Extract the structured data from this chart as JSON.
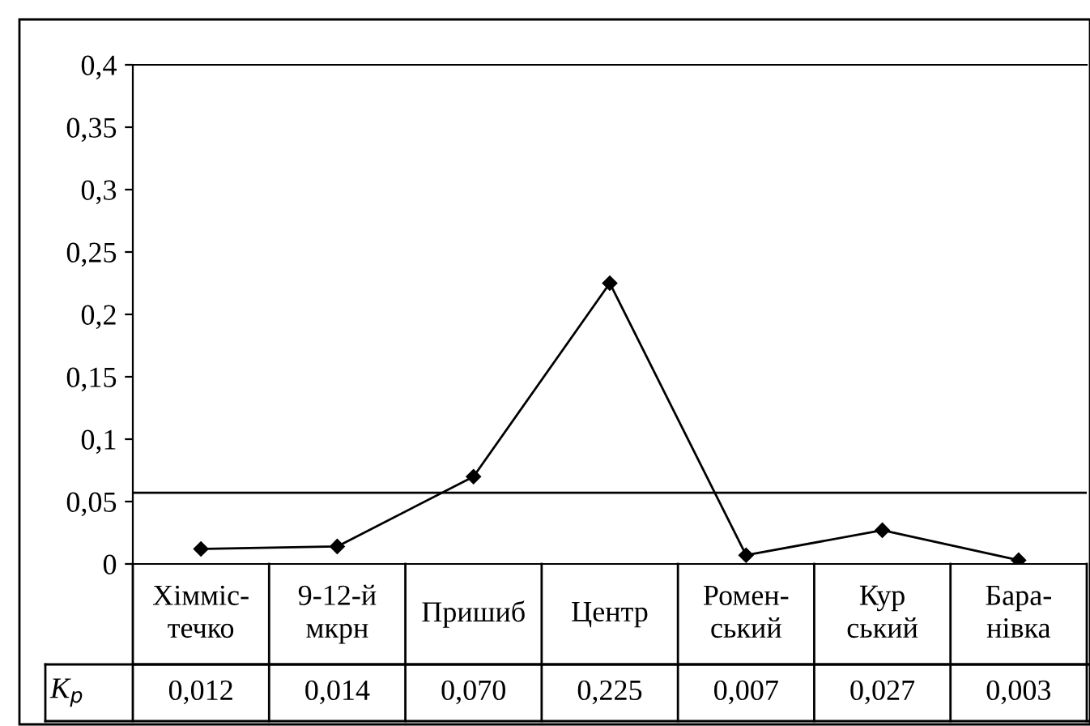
{
  "chart_data": {
    "type": "line",
    "categories": [
      "Хімміс-\nтечко",
      "9-12-й\nмкрн",
      "Пришиб",
      "Центр",
      "Ромен-\nський",
      "Кур\nський",
      "Бара-\nнівка"
    ],
    "series": [
      {
        "color": "#000000",
        "values": [
          0.012,
          0.014,
          0.07,
          0.225,
          0.007,
          0.027,
          0.003
        ],
        "value_labels": [
          "0,012",
          "0,014",
          "0,070",
          "0,225",
          "0,007",
          "0,027",
          "0,003"
        ]
      }
    ],
    "ylim": [
      0,
      0.4
    ],
    "yticks": [
      {
        "value": 0,
        "label": "0"
      },
      {
        "value": 0.05,
        "label": "0,05"
      },
      {
        "value": 0.1,
        "label": "0,1"
      },
      {
        "value": 0.15,
        "label": "0,15"
      },
      {
        "value": 0.2,
        "label": "0,2"
      },
      {
        "value": 0.25,
        "label": "0,25"
      },
      {
        "value": 0.3,
        "label": "0,3"
      },
      {
        "value": 0.35,
        "label": "0,35"
      },
      {
        "value": 0.4,
        "label": "0,4"
      }
    ],
    "ref_lines": [
      {
        "axis": "y",
        "value": 0.057,
        "color": "#000000"
      }
    ],
    "annotations": [
      "K$_{p}$"
    ],
    "marker": "diamond",
    "line_style": "solid",
    "grid": false,
    "legend": false
  }
}
